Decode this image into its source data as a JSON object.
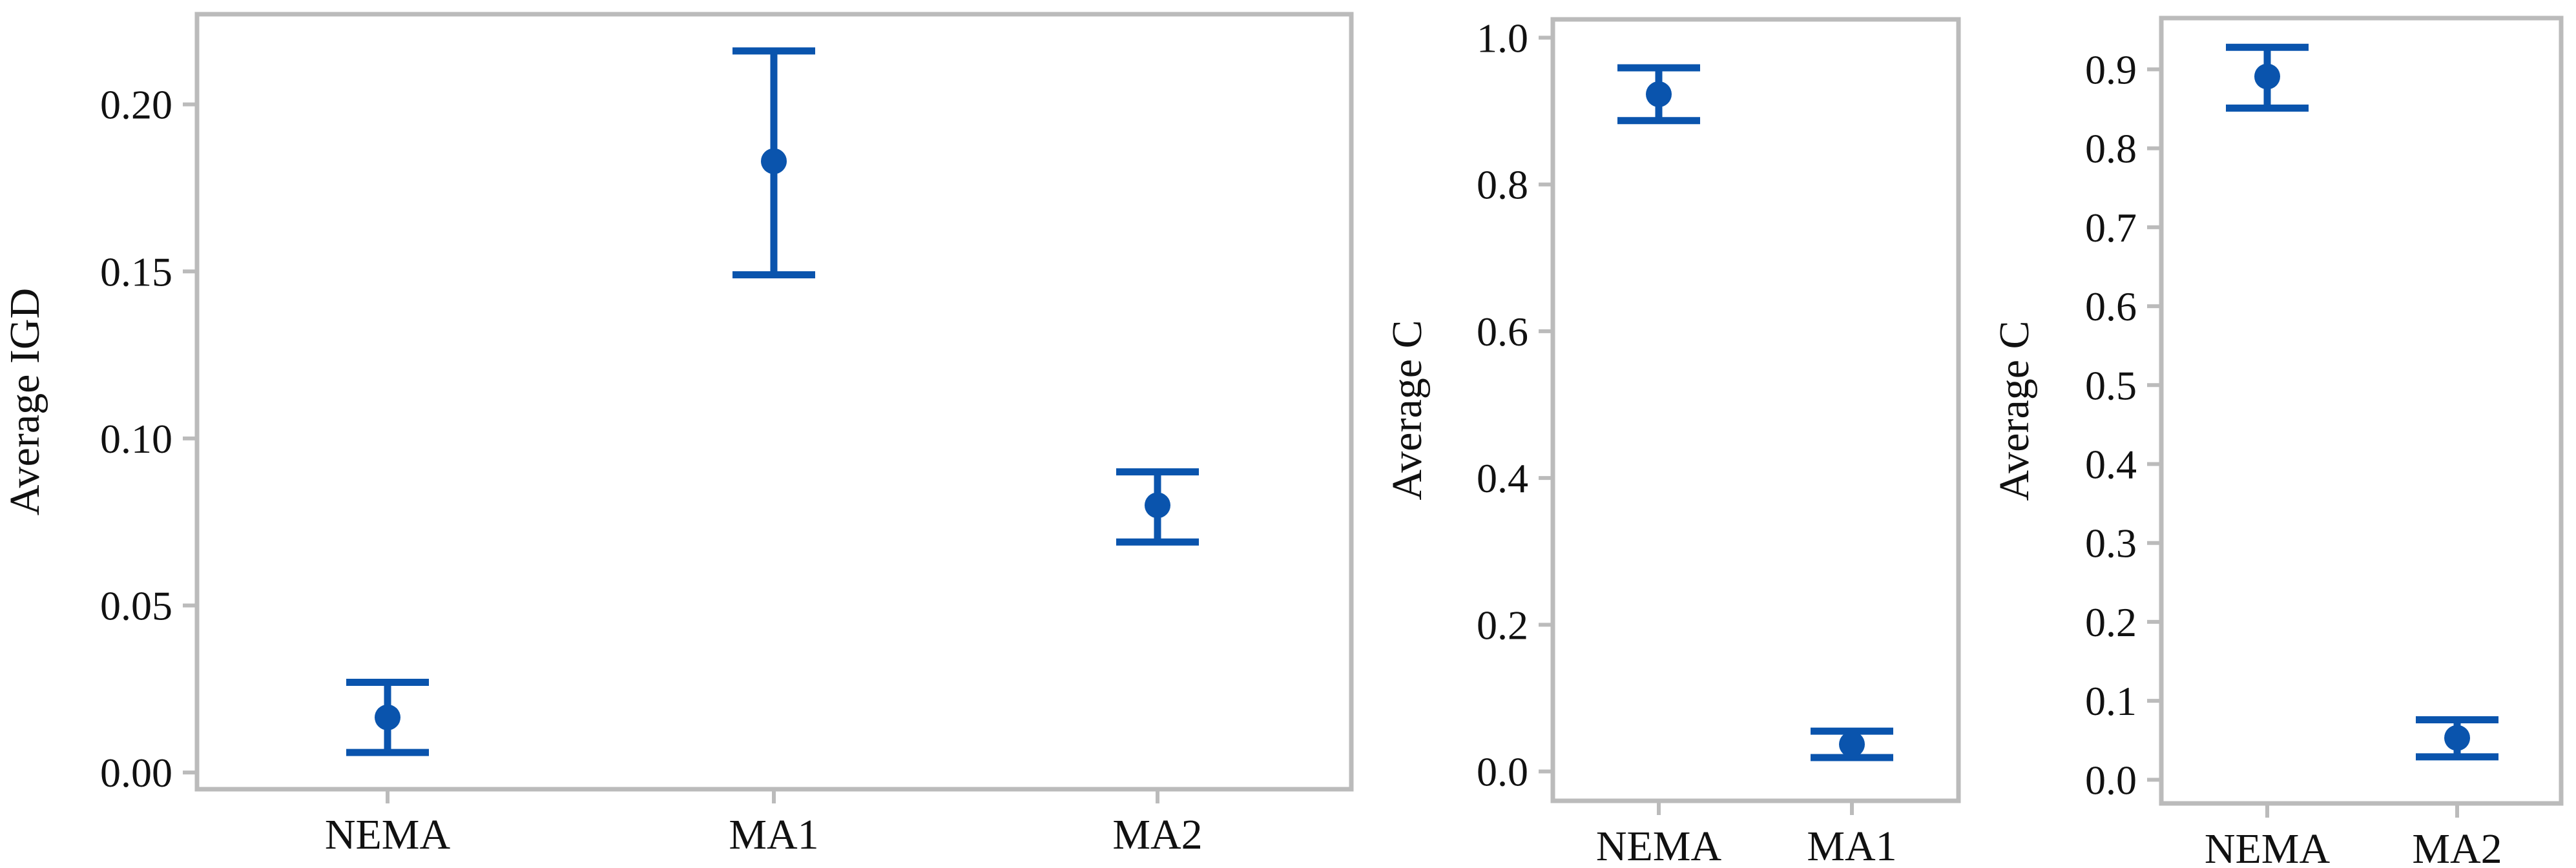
{
  "chart_data": [
    {
      "type": "errorbar",
      "title": "",
      "xlabel": "",
      "ylabel": "Average IGD",
      "categories": [
        "NEMA",
        "MA1",
        "MA2"
      ],
      "ylim": [
        -0.005,
        0.227
      ],
      "yticks": [
        0.0,
        0.05,
        0.1,
        0.15,
        0.2
      ],
      "ytick_labels": [
        "0.00",
        "0.05",
        "0.10",
        "0.15",
        "0.20"
      ],
      "grid": false,
      "legend": "none",
      "series": [
        {
          "mean": [
            0.0165,
            0.183,
            0.08
          ],
          "lower": [
            0.006,
            0.149,
            0.069
          ],
          "upper": [
            0.027,
            0.216,
            0.09
          ]
        }
      ]
    },
    {
      "type": "errorbar",
      "title": "",
      "xlabel": "",
      "ylabel": "Average C",
      "categories": [
        "NEMA",
        "MA1"
      ],
      "ylim": [
        -0.04,
        1.025
      ],
      "yticks": [
        0.0,
        0.2,
        0.4,
        0.6,
        0.8,
        1.0
      ],
      "ytick_labels": [
        "0.0",
        "0.2",
        "0.4",
        "0.6",
        "0.8",
        "1.0"
      ],
      "grid": false,
      "legend": "none",
      "series": [
        {
          "mean": [
            0.923,
            0.037
          ],
          "lower": [
            0.887,
            0.019
          ],
          "upper": [
            0.959,
            0.055
          ]
        }
      ]
    },
    {
      "type": "errorbar",
      "title": "",
      "xlabel": "",
      "ylabel": "Average C",
      "categories": [
        "NEMA",
        "MA2"
      ],
      "ylim": [
        -0.03,
        0.965
      ],
      "yticks": [
        0.0,
        0.1,
        0.2,
        0.3,
        0.4,
        0.5,
        0.6,
        0.7,
        0.8,
        0.9
      ],
      "ytick_labels": [
        "0.0",
        "0.1",
        "0.2",
        "0.3",
        "0.4",
        "0.5",
        "0.6",
        "0.7",
        "0.8",
        "0.9"
      ],
      "grid": false,
      "legend": "none",
      "series": [
        {
          "mean": [
            0.891,
            0.053
          ],
          "lower": [
            0.851,
            0.029
          ],
          "upper": [
            0.928,
            0.076
          ]
        }
      ]
    }
  ],
  "colors": {
    "marker": "#0A54AD",
    "frame": "#BBBBBB",
    "text": "#111111"
  }
}
